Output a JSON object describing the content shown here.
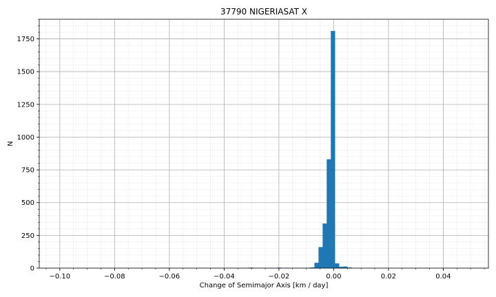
{
  "chart_data": {
    "type": "bar",
    "subtype": "histogram",
    "title": "37790 NIGERIASAT X",
    "xlabel": "Change of Semimajor Axis [km / day]",
    "ylabel": "N",
    "xlim": [
      -0.1075,
      0.0565
    ],
    "ylim": [
      0,
      1900
    ],
    "xticks": [
      -0.1,
      -0.08,
      -0.06,
      -0.04,
      -0.02,
      0.0,
      0.02,
      0.04
    ],
    "xtick_labels": [
      "−0.10",
      "−0.08",
      "−0.06",
      "−0.04",
      "−0.02",
      "0.00",
      "0.02",
      "0.04"
    ],
    "yticks": [
      0,
      250,
      500,
      750,
      1000,
      1250,
      1500,
      1750
    ],
    "ytick_labels": [
      "0",
      "250",
      "500",
      "750",
      "1000",
      "1250",
      "1500",
      "1750"
    ],
    "grid": true,
    "minor_grid": true,
    "bar_color": "#1f77b4",
    "bin_width": 0.0015,
    "bins": [
      {
        "x0": -0.031,
        "count": 3
      },
      {
        "x0": -0.0235,
        "count": 2
      },
      {
        "x0": -0.0205,
        "count": 3
      },
      {
        "x0": -0.0175,
        "count": 2
      },
      {
        "x0": -0.01,
        "count": 2
      },
      {
        "x0": -0.0085,
        "count": 5
      },
      {
        "x0": -0.007,
        "count": 40
      },
      {
        "x0": -0.0055,
        "count": 160
      },
      {
        "x0": -0.004,
        "count": 340
      },
      {
        "x0": -0.0025,
        "count": 830
      },
      {
        "x0": -0.001,
        "count": 1810
      },
      {
        "x0": 0.0005,
        "count": 35
      },
      {
        "x0": 0.002,
        "count": 10
      },
      {
        "x0": 0.0035,
        "count": 12
      },
      {
        "x0": 0.005,
        "count": 4
      }
    ]
  }
}
